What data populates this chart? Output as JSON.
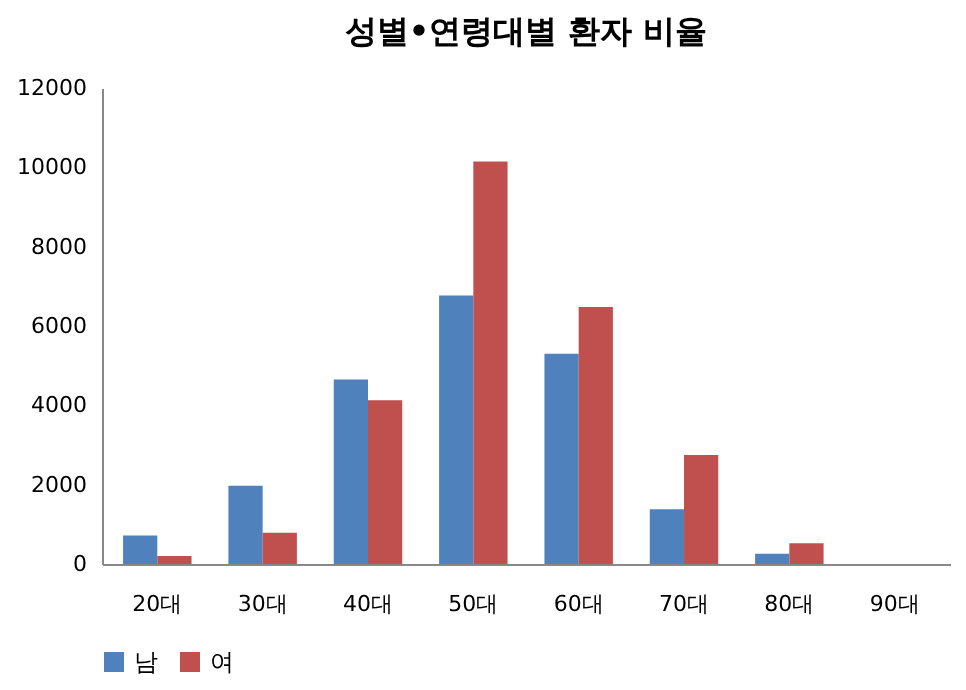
{
  "chart_data": {
    "type": "bar",
    "title": "성별•연령대별 환자 비율",
    "categories": [
      "20대",
      "30대",
      "40대",
      "50대",
      "60대",
      "70대",
      "80대",
      "90대"
    ],
    "series": [
      {
        "name": "남",
        "color": "#4f81bd",
        "values": [
          720,
          1970,
          4650,
          6770,
          5300,
          1380,
          260,
          null
        ]
      },
      {
        "name": "여",
        "color": "#c0504d",
        "values": [
          200,
          790,
          4130,
          10150,
          6480,
          2750,
          520,
          null
        ]
      }
    ],
    "ylim": [
      0,
      12000
    ],
    "yticks": [
      0,
      2000,
      4000,
      6000,
      8000,
      10000,
      12000
    ],
    "grid": false,
    "legend": "bottom"
  }
}
